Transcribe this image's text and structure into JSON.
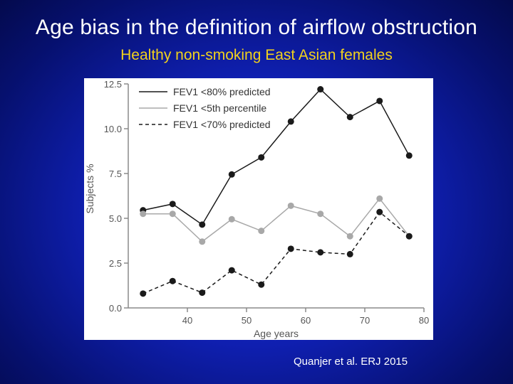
{
  "slide": {
    "title": "Age bias in the definition of airflow obstruction",
    "subtitle": "Healthy non-smoking East Asian females",
    "citation": "Quanjer et al. ERJ 2015"
  },
  "colors": {
    "background": "#0f1fb0",
    "title": "#ffffff",
    "subtitle": "#f2d21c",
    "series_dark": "#1a1a1a",
    "series_gray": "#a8a8a8"
  },
  "chart_data": {
    "type": "line",
    "xlabel": "Age years",
    "ylabel": "Subjects %",
    "xlim": [
      30,
      80
    ],
    "ylim": [
      0,
      12.5
    ],
    "xticks": [
      {
        "v": 40,
        "label": "40"
      },
      {
        "v": 50,
        "label": "50"
      },
      {
        "v": 60,
        "label": "60"
      },
      {
        "v": 70,
        "label": "70"
      },
      {
        "v": 80,
        "label": "80"
      }
    ],
    "yticks": [
      {
        "v": 0,
        "label": "0.0"
      },
      {
        "v": 2.5,
        "label": "2.5"
      },
      {
        "v": 5,
        "label": "5.0"
      },
      {
        "v": 7.5,
        "label": "7.5"
      },
      {
        "v": 10,
        "label": "10.0"
      },
      {
        "v": 12.5,
        "label": "12.5"
      }
    ],
    "grid": false,
    "legend_position": "top-left",
    "x": [
      32.5,
      37.5,
      42.5,
      47.5,
      52.5,
      57.5,
      62.5,
      67.5,
      72.5,
      77.5
    ],
    "series": [
      {
        "name": "FEV1 <80% predicted",
        "style": "solid",
        "color": "#1a1a1a",
        "values": [
          5.45,
          5.8,
          4.65,
          7.45,
          8.4,
          10.4,
          12.2,
          10.65,
          11.55,
          8.5
        ]
      },
      {
        "name": "FEV1 <5th percentile",
        "style": "solid",
        "color": "#a8a8a8",
        "values": [
          5.25,
          5.25,
          3.7,
          4.95,
          4.3,
          5.7,
          5.25,
          4.0,
          6.1,
          4.0
        ]
      },
      {
        "name": "FEV1 <70% predicted",
        "style": "dashed",
        "color": "#1a1a1a",
        "values": [
          0.8,
          1.5,
          0.85,
          2.1,
          1.3,
          3.3,
          3.1,
          3.0,
          5.35,
          4.0
        ]
      }
    ]
  }
}
